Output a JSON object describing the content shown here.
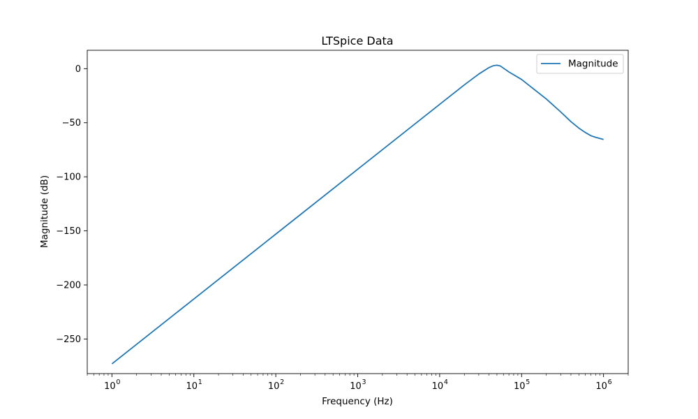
{
  "chart_data": {
    "type": "line",
    "title": "LTSpice Data",
    "xlabel": "Frequency (Hz)",
    "ylabel": "Magnitude (dB)",
    "x_scale": "log",
    "xlim": [
      0.5,
      2000000
    ],
    "ylim": [
      -282,
      17
    ],
    "x_ticks": [
      1,
      10,
      100,
      1000,
      10000,
      100000,
      1000000
    ],
    "x_tick_labels": [
      {
        "base": "10",
        "exp": "0"
      },
      {
        "base": "10",
        "exp": "1"
      },
      {
        "base": "10",
        "exp": "2"
      },
      {
        "base": "10",
        "exp": "3"
      },
      {
        "base": "10",
        "exp": "4"
      },
      {
        "base": "10",
        "exp": "5"
      },
      {
        "base": "10",
        "exp": "6"
      }
    ],
    "y_ticks": [
      0,
      -50,
      -100,
      -150,
      -200,
      -250
    ],
    "y_tick_labels": [
      "0",
      "−50",
      "−100",
      "−150",
      "−200",
      "−250"
    ],
    "grid": false,
    "legend_position": "upper right",
    "series": [
      {
        "name": "Magnitude",
        "color": "#1f77b4",
        "x": [
          1,
          10,
          100,
          1000,
          10000,
          20000,
          30000,
          40000,
          45000,
          50000,
          55000,
          60000,
          70000,
          100000,
          200000,
          300000,
          400000,
          500000,
          600000,
          700000,
          800000,
          900000,
          1000000
        ],
        "y": [
          -273,
          -213,
          -153,
          -93,
          -33,
          -15,
          -5,
          1,
          2.7,
          3.2,
          2.5,
          0.5,
          -3,
          -10,
          -28,
          -40,
          -49,
          -55,
          -59,
          -62,
          -63.5,
          -64.5,
          -65.5
        ]
      }
    ]
  }
}
